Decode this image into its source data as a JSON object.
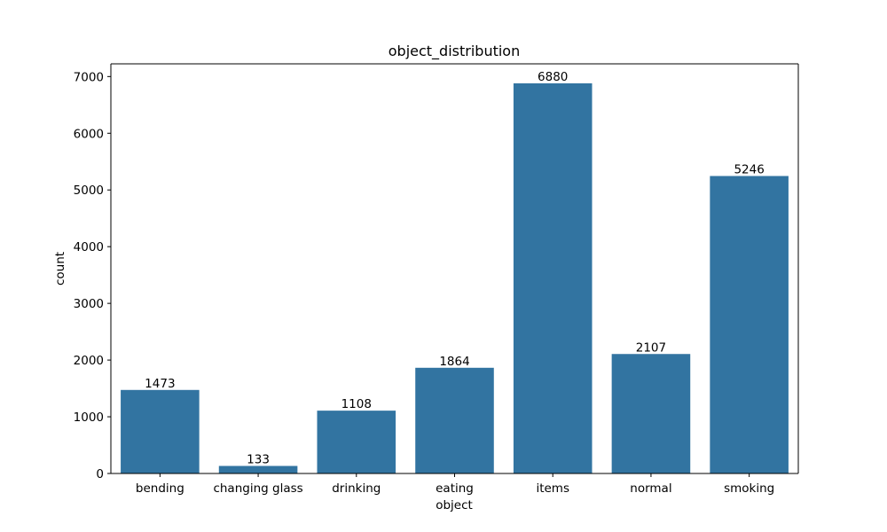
{
  "chart_data": {
    "type": "bar",
    "title": "object_distribution",
    "xlabel": "object",
    "ylabel": "count",
    "categories": [
      "bending",
      "changing glass",
      "drinking",
      "eating",
      "items",
      "normal",
      "smoking"
    ],
    "values": [
      1473,
      133,
      1108,
      1864,
      6880,
      2107,
      5246
    ],
    "data_labels": [
      "1473",
      "133",
      "1108",
      "1864",
      "6880",
      "2107",
      "5246"
    ],
    "ylim": [
      0,
      7224
    ],
    "yticks": [
      0,
      1000,
      2000,
      3000,
      4000,
      5000,
      6000,
      7000
    ],
    "ytick_labels": [
      "0",
      "1000",
      "2000",
      "3000",
      "4000",
      "5000",
      "6000",
      "7000"
    ],
    "bar_color": "#3274a1",
    "grid": false,
    "legend": "none"
  }
}
